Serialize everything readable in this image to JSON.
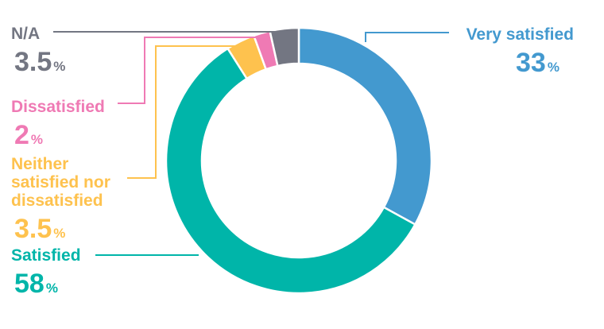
{
  "chart_data": {
    "type": "pie",
    "donut": true,
    "slices": [
      {
        "label": "Very satisfied",
        "value": 33,
        "display": "33",
        "unit": "%",
        "color": "#4399cf"
      },
      {
        "label": "Satisfied",
        "value": 58,
        "display": "58",
        "unit": "%",
        "color": "#00b5a9"
      },
      {
        "label": "Neither satisfied nor dissatisfied",
        "label_lines": [
          "Neither",
          "satisfied nor",
          "dissatisfied"
        ],
        "value": 3.5,
        "display": "3.5",
        "unit": "%",
        "color": "#fec24e"
      },
      {
        "label": "Dissatisfied",
        "value": 2,
        "display": "2",
        "unit": "%",
        "color": "#ef7ab4"
      },
      {
        "label": "N/A",
        "value": 3.5,
        "display": "3.5",
        "unit": "%",
        "color": "#737682"
      }
    ]
  }
}
